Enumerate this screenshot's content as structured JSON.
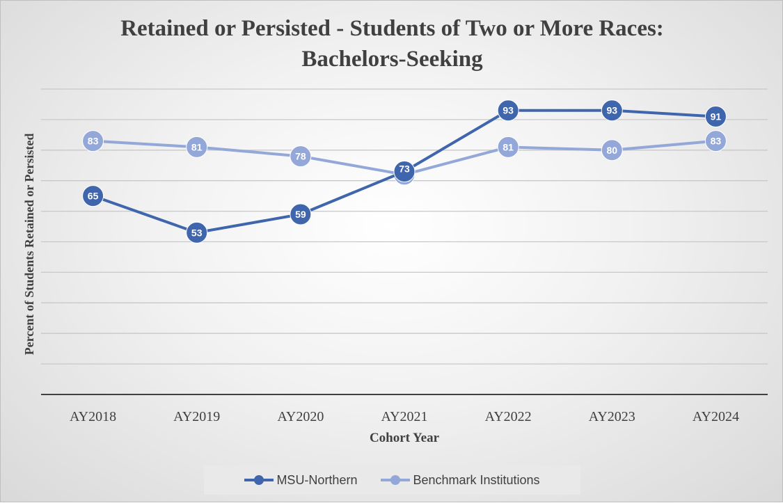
{
  "chart_data": {
    "type": "line",
    "title": "Retained or Persisted - Students of  Two or More Races: Bachelors-Seeking",
    "title_line1": "Retained or Persisted - Students of  Two or More Races:",
    "title_line2": "Bachelors-Seeking",
    "xlabel": "Cohort Year",
    "ylabel": "Percent of  Students Retained or Persisted",
    "categories": [
      "AY2018",
      "AY2019",
      "AY2020",
      "AY2021",
      "AY2022",
      "AY2023",
      "AY2024"
    ],
    "series": [
      {
        "name": "MSU-Northern",
        "values": [
          65,
          53,
          59,
          73,
          93,
          93,
          91
        ],
        "color": "#3f65ad"
      },
      {
        "name": "Benchmark Institutions",
        "values": [
          83,
          81,
          78,
          72,
          81,
          80,
          83
        ],
        "color": "#93a7d8"
      }
    ],
    "ylim": [
      0,
      100
    ],
    "y_gridline_step": 10,
    "grid": true,
    "data_labels": true,
    "legend_position": "bottom"
  }
}
